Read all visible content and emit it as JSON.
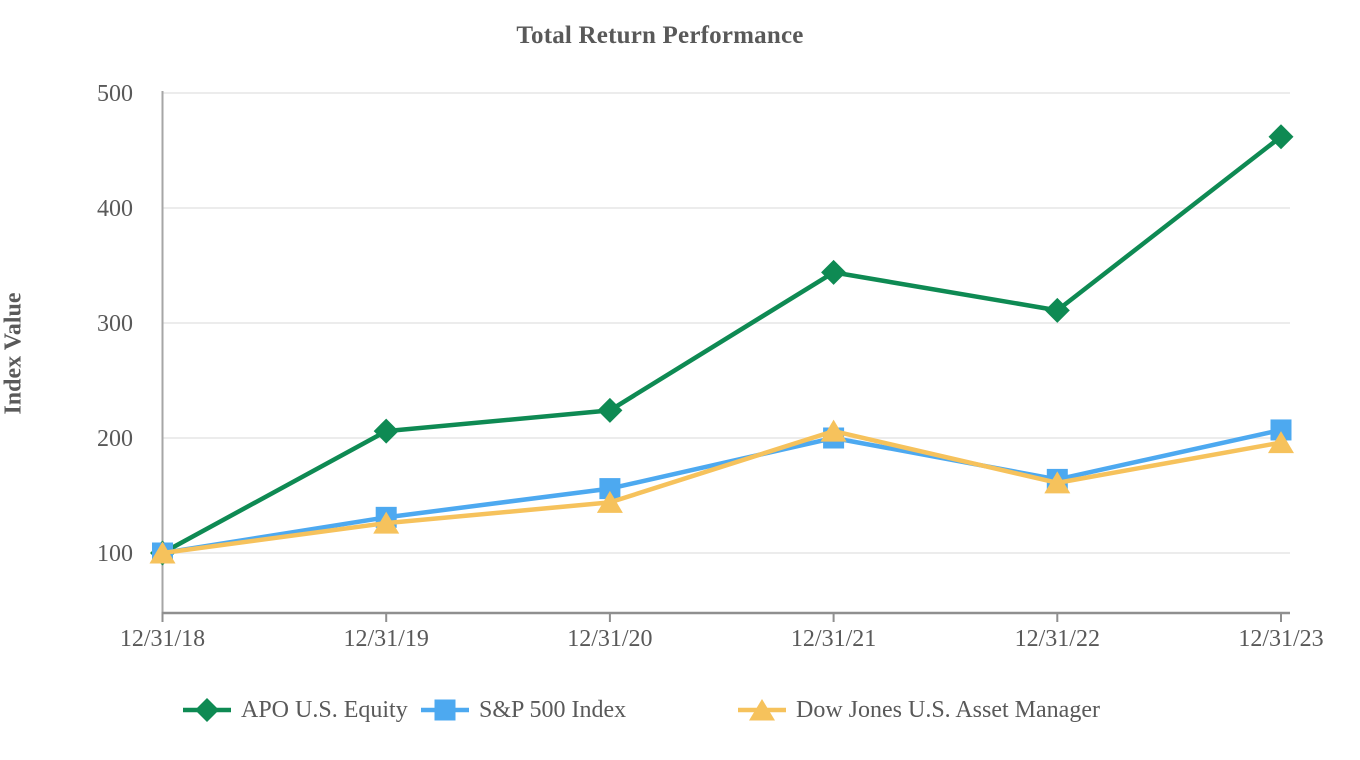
{
  "chart_data": {
    "type": "line",
    "title": "Total Return Performance",
    "xlabel": "",
    "ylabel": "Index Value",
    "x": [
      "12/31/18",
      "12/31/19",
      "12/31/20",
      "12/31/21",
      "12/31/22",
      "12/31/23"
    ],
    "series": [
      {
        "name": "APO U.S. Equity",
        "marker": "diamond",
        "color": "#0e8a53",
        "values": [
          100,
          206,
          224,
          344,
          311,
          462
        ]
      },
      {
        "name": "S&P 500 Index",
        "marker": "square",
        "color": "#4da9f0",
        "values": [
          100,
          131,
          156,
          200,
          164,
          207
        ]
      },
      {
        "name": "Dow Jones U.S. Asset Manager",
        "marker": "triangle",
        "color": "#f6c25c",
        "values": [
          100,
          126,
          144,
          206,
          161,
          196
        ]
      }
    ],
    "yticks": [
      100,
      200,
      300,
      400,
      500
    ],
    "ylim": [
      48,
      500
    ],
    "grid": true,
    "legend_position": "bottom"
  },
  "style": {
    "text_color": "#595959",
    "grid_color": "#ececec",
    "y_axis_color": "#a6a6a6",
    "x_axis_color": "#8f8f8f",
    "background": "#ffffff"
  }
}
